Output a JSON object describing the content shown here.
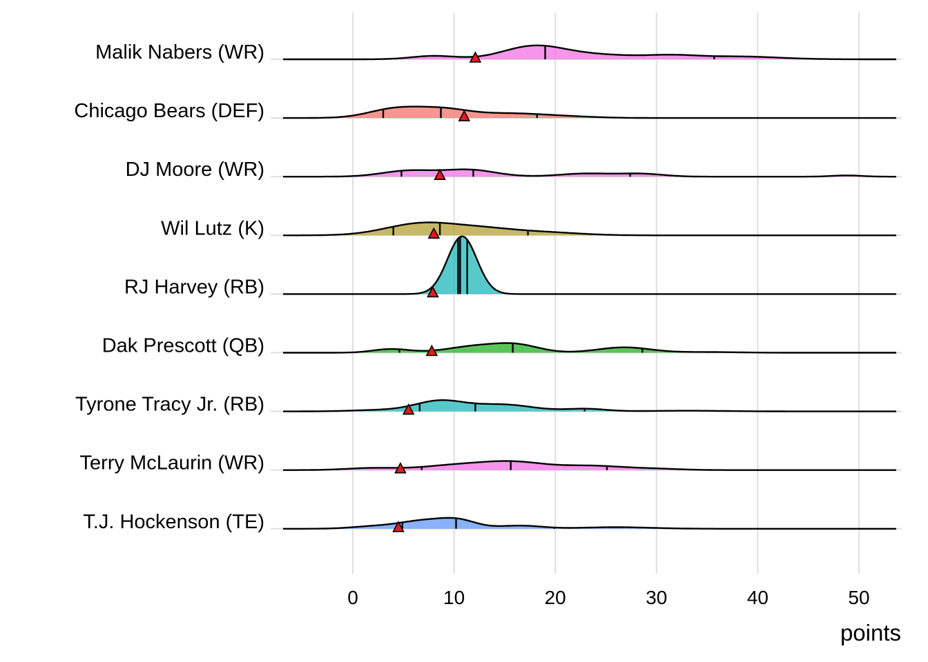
{
  "chart_data": {
    "type": "ridgeline",
    "title": "",
    "xlabel": "points",
    "ylabel": "",
    "xlim": [
      -7,
      54
    ],
    "x_ticks": [
      0,
      10,
      20,
      30,
      40,
      50
    ],
    "x_tick_labels": [
      "0",
      "10",
      "20",
      "30",
      "40",
      "50"
    ],
    "grid": true,
    "marker_color": "#e41a1c",
    "series": [
      {
        "name": "Malik Nabers (WR)",
        "color": "#f37be6",
        "quantiles": [
          19.0,
          35.7
        ],
        "marker": 12.1,
        "components": [
          [
            8,
            2.2,
            0.6
          ],
          [
            17.8,
            3.0,
            2.2
          ],
          [
            24,
            4,
            0.8
          ],
          [
            31.5,
            2.5,
            0.55
          ],
          [
            38,
            4,
            0.5
          ]
        ]
      },
      {
        "name": "Chicago Bears (DEF)",
        "color": "#f47c74",
        "quantiles": [
          3.0,
          8.7,
          18.2
        ],
        "marker": 11.0,
        "components": [
          [
            4.2,
            2.6,
            1.6
          ],
          [
            9.0,
            2.6,
            1.45
          ],
          [
            15.5,
            3.2,
            0.75
          ],
          [
            21,
            3,
            0.25
          ]
        ]
      },
      {
        "name": "DJ Moore (WR)",
        "color": "#f37be6",
        "quantiles": [
          4.8,
          11.9,
          27.4
        ],
        "marker": 8.6,
        "components": [
          [
            5.5,
            2.6,
            1.05
          ],
          [
            11.5,
            2.6,
            1.2
          ],
          [
            23,
            2.6,
            0.55
          ],
          [
            28.5,
            2.2,
            0.5
          ],
          [
            48.8,
            1.5,
            0.22
          ]
        ]
      },
      {
        "name": "Wil Lutz (K)",
        "color": "#b8a63e",
        "quantiles": [
          4.0,
          8.6,
          17.3
        ],
        "marker": 8.0,
        "components": [
          [
            6.8,
            3.5,
            2.1
          ],
          [
            13,
            3.2,
            1.0
          ],
          [
            19,
            3.5,
            0.5
          ]
        ]
      },
      {
        "name": "RJ Harvey (RB)",
        "color": "#2ebcbe",
        "quantiles": [
          10.4,
          10.6,
          11.3
        ],
        "marker": 7.9,
        "components": [
          [
            10.8,
            1.45,
            10.2
          ]
        ]
      },
      {
        "name": "Dak Prescott (QB)",
        "color": "#2fb72f",
        "quantiles": [
          4.6,
          15.8,
          28.6
        ],
        "marker": 7.8,
        "components": [
          [
            3.8,
            1.8,
            0.65
          ],
          [
            12.2,
            2.8,
            1.15
          ],
          [
            16.3,
            2.2,
            1.2
          ],
          [
            26.8,
            2.6,
            0.95
          ],
          [
            35,
            3,
            0.12
          ]
        ]
      },
      {
        "name": "Tyrone Tracy Jr. (RB)",
        "color": "#2ebcbe",
        "quantiles": [
          6.6,
          12.1,
          22.9
        ],
        "marker": 5.5,
        "components": [
          [
            3,
            3,
            0.25
          ],
          [
            8.6,
            2.4,
            1.8
          ],
          [
            14.8,
            3,
            1.2
          ],
          [
            23,
            2,
            0.45
          ],
          [
            33,
            4,
            0.12
          ]
        ]
      },
      {
        "name": "Terry McLaurin (WR)",
        "color": "#f37be6",
        "quantiles": [
          6.8,
          15.6,
          25.1
        ],
        "marker": 4.7,
        "components": [
          [
            1.8,
            2.5,
            0.35
          ],
          [
            10.5,
            3.5,
            0.9
          ],
          [
            16,
            3,
            1.25
          ],
          [
            23.5,
            3.3,
            0.75
          ],
          [
            30,
            2.5,
            0.2
          ]
        ]
      },
      {
        "name": "T.J. Hockenson (TE)",
        "color": "#6d9ef8",
        "quantiles": [
          4.9,
          10.2,
          19.9
        ],
        "marker": 4.5,
        "components": [
          [
            2,
            2.2,
            0.4
          ],
          [
            7,
            2.4,
            1.4
          ],
          [
            10.5,
            1.8,
            1.3
          ],
          [
            16.5,
            2.2,
            0.55
          ],
          [
            26,
            3.5,
            0.28
          ]
        ]
      }
    ]
  }
}
